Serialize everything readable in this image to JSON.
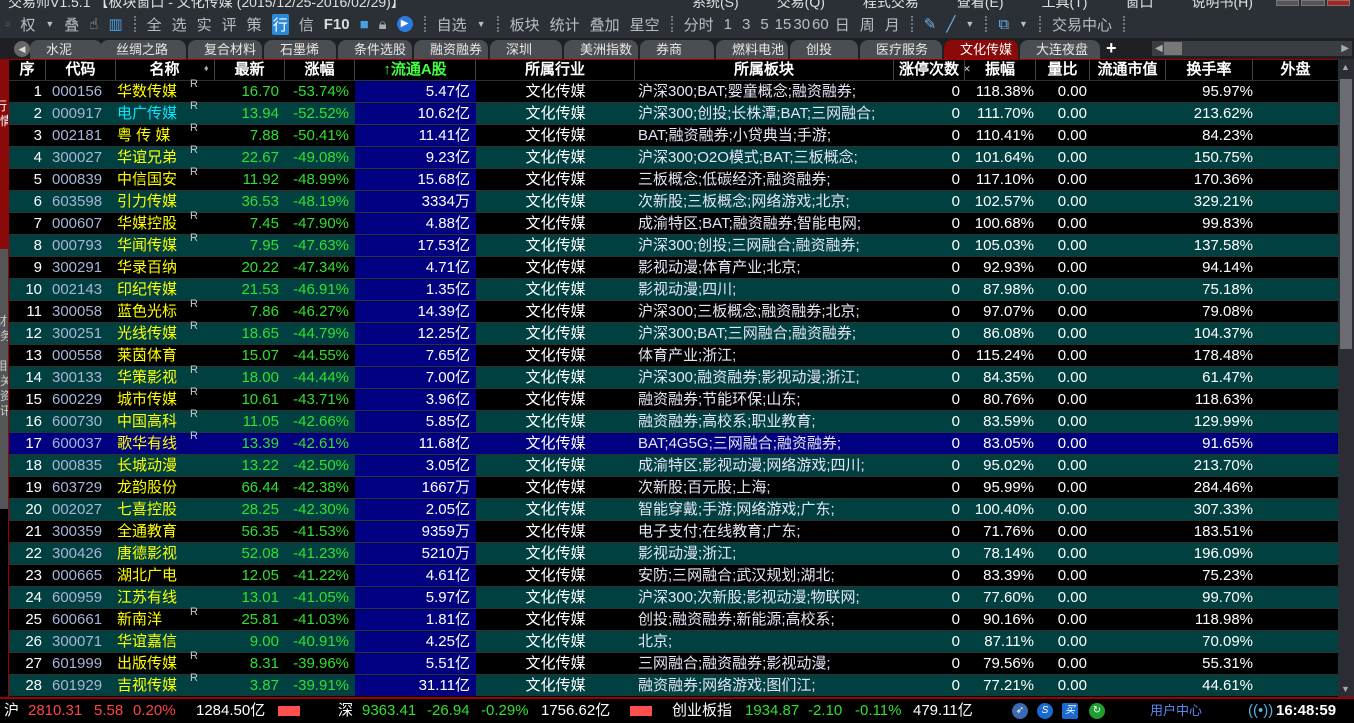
{
  "titlebar": {
    "title": "交易师V1.5.1    【板块窗口 - 文化传媒 (2015/12/25-2016/02/29)】",
    "menu": [
      "系统(S)",
      "交易(Q)",
      "程式交易",
      "查看(E)",
      "工具(T)",
      "窗口",
      "说明书(H)"
    ]
  },
  "toolbar": {
    "group1": [
      "权",
      "叠"
    ],
    "group2": [
      "全",
      "选",
      "实",
      "评",
      "策",
      "行",
      "信",
      "F10"
    ],
    "zixuan": "自选",
    "group3": [
      "板块",
      "统计",
      "叠加",
      "星空"
    ],
    "periods": [
      "分时",
      "1",
      "3",
      "5",
      "15",
      "30",
      "60",
      "日",
      "周",
      "月"
    ],
    "trade_center": "交易中心"
  },
  "tabs": [
    "水泥",
    "丝绸之路",
    "复合材料",
    "石墨烯",
    "条件选股",
    "融资融券",
    "深圳",
    "美洲指数",
    "券商",
    "燃料电池",
    "创投",
    "医疗服务",
    "文化传媒",
    "大连夜盘"
  ],
  "active_tab": "文化传媒",
  "tab_close": "×",
  "tab_add": "+",
  "sidebar": [
    "行情",
    "财务",
    "相关资讯"
  ],
  "table": {
    "headers": [
      "序",
      "代码",
      "名称",
      "最新",
      "涨幅",
      "↑流通A股",
      "所属行业",
      "所属板块",
      "涨停次数",
      "振幅",
      "量比",
      "流通市值",
      "换手率",
      "外盘"
    ],
    "sort_column": "流通A股",
    "selected_row": 17,
    "rows": [
      {
        "seq": "1",
        "code": "000156",
        "name": "华数传媒",
        "r": "R",
        "latest": "16.70",
        "change": "-53.74%",
        "float": "5.47亿",
        "industry": "文化传媒",
        "sectors": "沪深300;BAT;婴童概念;融资融券;",
        "limit": "0",
        "amp": "118.38%",
        "vr": "0.00",
        "turnover": "95.97%"
      },
      {
        "seq": "2",
        "code": "000917",
        "name": "电广传媒",
        "r": "R",
        "latest": "13.94",
        "change": "-52.52%",
        "float": "10.62亿",
        "industry": "文化传媒",
        "sectors": "沪深300;创投;长株潭;BAT;三网融合;",
        "limit": "0",
        "amp": "111.70%",
        "vr": "0.00",
        "turnover": "213.62%"
      },
      {
        "seq": "3",
        "code": "002181",
        "name": "粤 传 媒",
        "r": "R",
        "latest": "7.88",
        "change": "-50.41%",
        "float": "11.41亿",
        "industry": "文化传媒",
        "sectors": "BAT;融资融券;小贷典当;手游;",
        "limit": "0",
        "amp": "110.41%",
        "vr": "0.00",
        "turnover": "84.23%"
      },
      {
        "seq": "4",
        "code": "300027",
        "name": "华谊兄弟",
        "r": "R",
        "latest": "22.67",
        "change": "-49.08%",
        "float": "9.23亿",
        "industry": "文化传媒",
        "sectors": "沪深300;O2O模式;BAT;三板概念;",
        "limit": "0",
        "amp": "101.64%",
        "vr": "0.00",
        "turnover": "150.75%"
      },
      {
        "seq": "5",
        "code": "000839",
        "name": "中信国安",
        "r": "R",
        "latest": "11.92",
        "change": "-48.99%",
        "float": "15.68亿",
        "industry": "文化传媒",
        "sectors": "三板概念;低碳经济;融资融券;",
        "limit": "0",
        "amp": "117.10%",
        "vr": "0.00",
        "turnover": "170.36%"
      },
      {
        "seq": "6",
        "code": "603598",
        "name": "引力传媒",
        "r": "",
        "latest": "36.53",
        "change": "-48.19%",
        "float": "3334万",
        "industry": "文化传媒",
        "sectors": "次新股;三板概念;网络游戏;北京;",
        "limit": "0",
        "amp": "102.57%",
        "vr": "0.00",
        "turnover": "329.21%"
      },
      {
        "seq": "7",
        "code": "000607",
        "name": "华媒控股",
        "r": "R",
        "latest": "7.45",
        "change": "-47.90%",
        "float": "4.88亿",
        "industry": "文化传媒",
        "sectors": "成渝特区;BAT;融资融券;智能电网;",
        "limit": "0",
        "amp": "100.68%",
        "vr": "0.00",
        "turnover": "99.83%"
      },
      {
        "seq": "8",
        "code": "000793",
        "name": "华闻传媒",
        "r": "R",
        "latest": "7.95",
        "change": "-47.63%",
        "float": "17.53亿",
        "industry": "文化传媒",
        "sectors": "沪深300;创投;三网融合;融资融券;",
        "limit": "0",
        "amp": "105.03%",
        "vr": "0.00",
        "turnover": "137.58%"
      },
      {
        "seq": "9",
        "code": "300291",
        "name": "华录百纳",
        "r": "",
        "latest": "20.22",
        "change": "-47.34%",
        "float": "4.71亿",
        "industry": "文化传媒",
        "sectors": "影视动漫;体育产业;北京;",
        "limit": "0",
        "amp": "92.93%",
        "vr": "0.00",
        "turnover": "94.14%"
      },
      {
        "seq": "10",
        "code": "002143",
        "name": "印纪传媒",
        "r": "",
        "latest": "21.53",
        "change": "-46.91%",
        "float": "1.35亿",
        "industry": "文化传媒",
        "sectors": "影视动漫;四川;",
        "limit": "0",
        "amp": "87.98%",
        "vr": "0.00",
        "turnover": "75.18%"
      },
      {
        "seq": "11",
        "code": "300058",
        "name": "蓝色光标",
        "r": "R",
        "latest": "7.86",
        "change": "-46.27%",
        "float": "14.39亿",
        "industry": "文化传媒",
        "sectors": "沪深300;三板概念;融资融券;北京;",
        "limit": "0",
        "amp": "97.07%",
        "vr": "0.00",
        "turnover": "79.08%"
      },
      {
        "seq": "12",
        "code": "300251",
        "name": "光线传媒",
        "r": "R",
        "latest": "18.65",
        "change": "-44.79%",
        "float": "12.25亿",
        "industry": "文化传媒",
        "sectors": "沪深300;BAT;三网融合;融资融券;",
        "limit": "0",
        "amp": "86.08%",
        "vr": "0.00",
        "turnover": "104.37%"
      },
      {
        "seq": "13",
        "code": "000558",
        "name": "莱茵体育",
        "r": "",
        "latest": "15.07",
        "change": "-44.55%",
        "float": "7.65亿",
        "industry": "文化传媒",
        "sectors": "体育产业;浙江;",
        "limit": "0",
        "amp": "115.24%",
        "vr": "0.00",
        "turnover": "178.48%"
      },
      {
        "seq": "14",
        "code": "300133",
        "name": "华策影视",
        "r": "R",
        "latest": "18.00",
        "change": "-44.44%",
        "float": "7.00亿",
        "industry": "文化传媒",
        "sectors": "沪深300;融资融券;影视动漫;浙江;",
        "limit": "0",
        "amp": "84.35%",
        "vr": "0.00",
        "turnover": "61.47%"
      },
      {
        "seq": "15",
        "code": "600229",
        "name": "城市传媒",
        "r": "R",
        "latest": "10.61",
        "change": "-43.71%",
        "float": "3.96亿",
        "industry": "文化传媒",
        "sectors": "融资融券;节能环保;山东;",
        "limit": "0",
        "amp": "80.76%",
        "vr": "0.00",
        "turnover": "118.63%"
      },
      {
        "seq": "16",
        "code": "600730",
        "name": "中国高科",
        "r": "R",
        "latest": "11.05",
        "change": "-42.66%",
        "float": "5.85亿",
        "industry": "文化传媒",
        "sectors": "融资融券;高校系;职业教育;",
        "limit": "0",
        "amp": "83.59%",
        "vr": "0.00",
        "turnover": "129.99%"
      },
      {
        "seq": "17",
        "code": "600037",
        "name": "歌华有线",
        "r": "R",
        "latest": "13.39",
        "change": "-42.61%",
        "float": "11.68亿",
        "industry": "文化传媒",
        "sectors": "BAT;4G5G;三网融合;融资融券;",
        "limit": "0",
        "amp": "83.05%",
        "vr": "0.00",
        "turnover": "91.65%"
      },
      {
        "seq": "18",
        "code": "000835",
        "name": "长城动漫",
        "r": "",
        "latest": "13.22",
        "change": "-42.50%",
        "float": "3.05亿",
        "industry": "文化传媒",
        "sectors": "成渝特区;影视动漫;网络游戏;四川;",
        "limit": "0",
        "amp": "95.02%",
        "vr": "0.00",
        "turnover": "213.70%"
      },
      {
        "seq": "19",
        "code": "603729",
        "name": "龙韵股份",
        "r": "",
        "latest": "66.44",
        "change": "-42.38%",
        "float": "1667万",
        "industry": "文化传媒",
        "sectors": "次新股;百元股;上海;",
        "limit": "0",
        "amp": "95.99%",
        "vr": "0.00",
        "turnover": "284.46%"
      },
      {
        "seq": "20",
        "code": "002027",
        "name": "七喜控股",
        "r": "",
        "latest": "28.25",
        "change": "-42.30%",
        "float": "2.05亿",
        "industry": "文化传媒",
        "sectors": "智能穿戴;手游;网络游戏;广东;",
        "limit": "0",
        "amp": "100.40%",
        "vr": "0.00",
        "turnover": "307.33%"
      },
      {
        "seq": "21",
        "code": "300359",
        "name": "全通教育",
        "r": "",
        "latest": "56.35",
        "change": "-41.53%",
        "float": "9359万",
        "industry": "文化传媒",
        "sectors": "电子支付;在线教育;广东;",
        "limit": "0",
        "amp": "71.76%",
        "vr": "0.00",
        "turnover": "183.51%"
      },
      {
        "seq": "22",
        "code": "300426",
        "name": "唐德影视",
        "r": "",
        "latest": "52.08",
        "change": "-41.23%",
        "float": "5210万",
        "industry": "文化传媒",
        "sectors": "影视动漫;浙江;",
        "limit": "0",
        "amp": "78.14%",
        "vr": "0.00",
        "turnover": "196.09%"
      },
      {
        "seq": "23",
        "code": "000665",
        "name": "湖北广电",
        "r": "",
        "latest": "12.05",
        "change": "-41.22%",
        "float": "4.61亿",
        "industry": "文化传媒",
        "sectors": "安防;三网融合;武汉规划;湖北;",
        "limit": "0",
        "amp": "83.39%",
        "vr": "0.00",
        "turnover": "75.23%"
      },
      {
        "seq": "24",
        "code": "600959",
        "name": "江苏有线",
        "r": "",
        "latest": "13.01",
        "change": "-41.05%",
        "float": "5.97亿",
        "industry": "文化传媒",
        "sectors": "沪深300;次新股;影视动漫;物联网;",
        "limit": "0",
        "amp": "77.60%",
        "vr": "0.00",
        "turnover": "99.70%"
      },
      {
        "seq": "25",
        "code": "600661",
        "name": "新南洋",
        "r": "R",
        "latest": "25.81",
        "change": "-41.03%",
        "float": "1.81亿",
        "industry": "文化传媒",
        "sectors": "创投;融资融券;新能源;高校系;",
        "limit": "0",
        "amp": "90.16%",
        "vr": "0.00",
        "turnover": "118.98%"
      },
      {
        "seq": "26",
        "code": "300071",
        "name": "华谊嘉信",
        "r": "",
        "latest": "9.00",
        "change": "-40.91%",
        "float": "4.25亿",
        "industry": "文化传媒",
        "sectors": "北京;",
        "limit": "0",
        "amp": "87.11%",
        "vr": "0.00",
        "turnover": "70.09%"
      },
      {
        "seq": "27",
        "code": "601999",
        "name": "出版传媒",
        "r": "R",
        "latest": "8.31",
        "change": "-39.96%",
        "float": "5.51亿",
        "industry": "文化传媒",
        "sectors": "三网融合;融资融券;影视动漫;",
        "limit": "0",
        "amp": "79.56%",
        "vr": "0.00",
        "turnover": "55.31%"
      },
      {
        "seq": "28",
        "code": "601929",
        "name": "吉视传媒",
        "r": "R",
        "latest": "3.87",
        "change": "-39.91%",
        "float": "31.11亿",
        "industry": "文化传媒",
        "sectors": "融资融券;网络游戏;图们江;",
        "limit": "0",
        "amp": "77.21%",
        "vr": "0.00",
        "turnover": "44.61%"
      }
    ]
  },
  "status": {
    "sh": {
      "label": "沪",
      "index": "2810.31",
      "change": "5.58",
      "pct": "0.20%",
      "amount": "1284.50亿"
    },
    "sz": {
      "label": "深",
      "index": "9363.41",
      "change": "-26.94",
      "pct": "-0.29%",
      "amount": "1756.62亿"
    },
    "cyb": {
      "label": "创业板指",
      "index": "1934.87",
      "change": "-2.10",
      "pct": "-0.11%",
      "amount": "479.11亿"
    },
    "user_center": "用户中心",
    "time": "16:48:59"
  },
  "colors": {
    "row_even": "#004040",
    "row_odd": "#000000",
    "selected": "#000080",
    "up": "#ff4545",
    "down": "#30e030",
    "name": "#ffff00",
    "active_tab": "#8a0a0a"
  }
}
